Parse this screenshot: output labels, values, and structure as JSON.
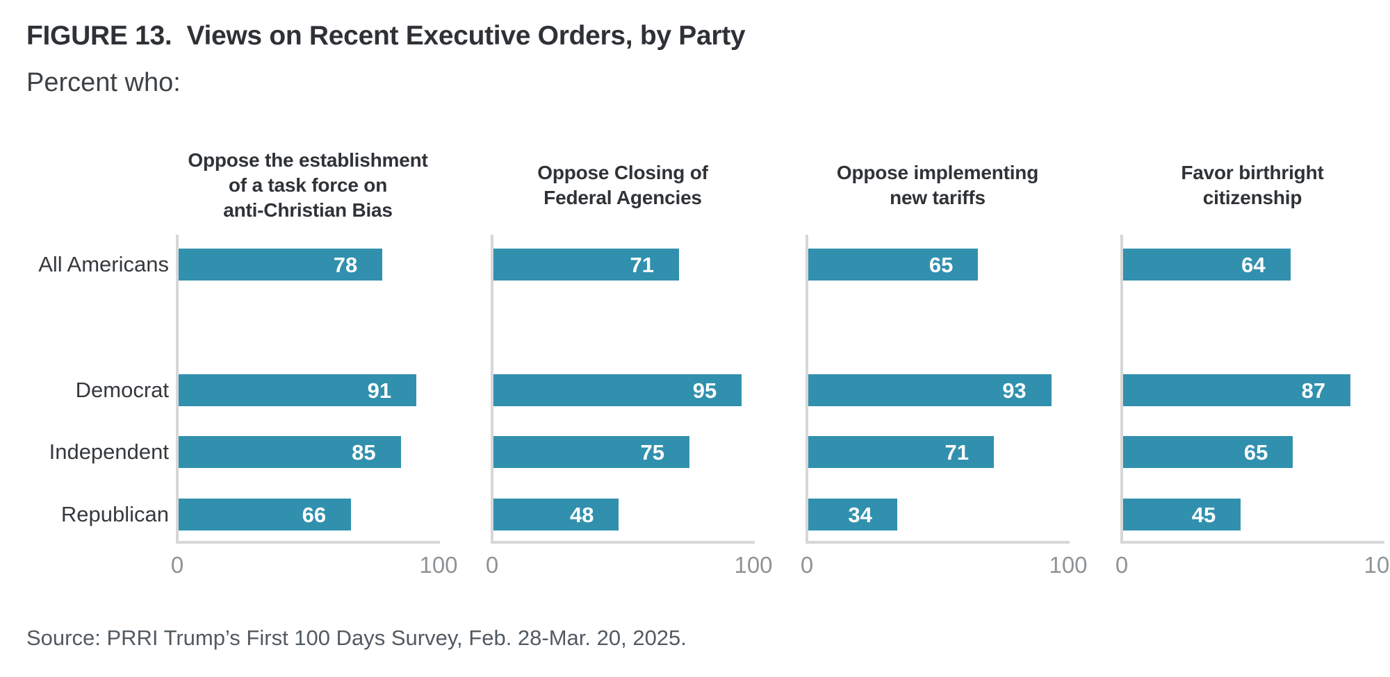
{
  "figure": {
    "title": "FIGURE 13.  Views on Recent Executive Orders, by Party",
    "subtitle": "Percent who:",
    "source": "Source: PRRI Trump’s First 100 Days Survey, Feb. 28-Mar. 20, 2025."
  },
  "colors": {
    "bar": "#3190ad",
    "bar_value_text": "#ffffff",
    "axis_line": "#d7d7d7",
    "tick_text": "#8f9296",
    "title_text": "#2e3236",
    "source_text": "#525a61"
  },
  "chart_data": {
    "type": "bar",
    "orientation": "horizontal",
    "title": "FIGURE 13. Views on Recent Executive Orders, by Party",
    "subtitle": "Percent who:",
    "categories": [
      "All Americans",
      "Democrat",
      "Independent",
      "Republican"
    ],
    "xlim": [
      0,
      100
    ],
    "xticks": [
      0,
      100
    ],
    "xtick_labels": [
      "0",
      "100"
    ],
    "grid": false,
    "legend": null,
    "value_label_position": "inside-end",
    "panels": [
      {
        "title": "Oppose the establishment of a task force on anti-Christian Bias",
        "title_lines": [
          "Oppose the establishment",
          "of a task force on",
          "anti-Christian Bias"
        ],
        "values": [
          78,
          91,
          85,
          66
        ]
      },
      {
        "title": "Oppose Closing of Federal Agencies",
        "title_lines": [
          "Oppose Closing of",
          "Federal Agencies"
        ],
        "values": [
          71,
          95,
          75,
          48
        ]
      },
      {
        "title": "Oppose implementing new tariffs",
        "title_lines": [
          "Oppose implementing",
          "new tariffs"
        ],
        "values": [
          65,
          93,
          71,
          34
        ]
      },
      {
        "title": "Favor birthright citizenship",
        "title_lines": [
          "Favor birthright",
          "citizenship"
        ],
        "values": [
          64,
          87,
          65,
          45
        ]
      }
    ]
  }
}
